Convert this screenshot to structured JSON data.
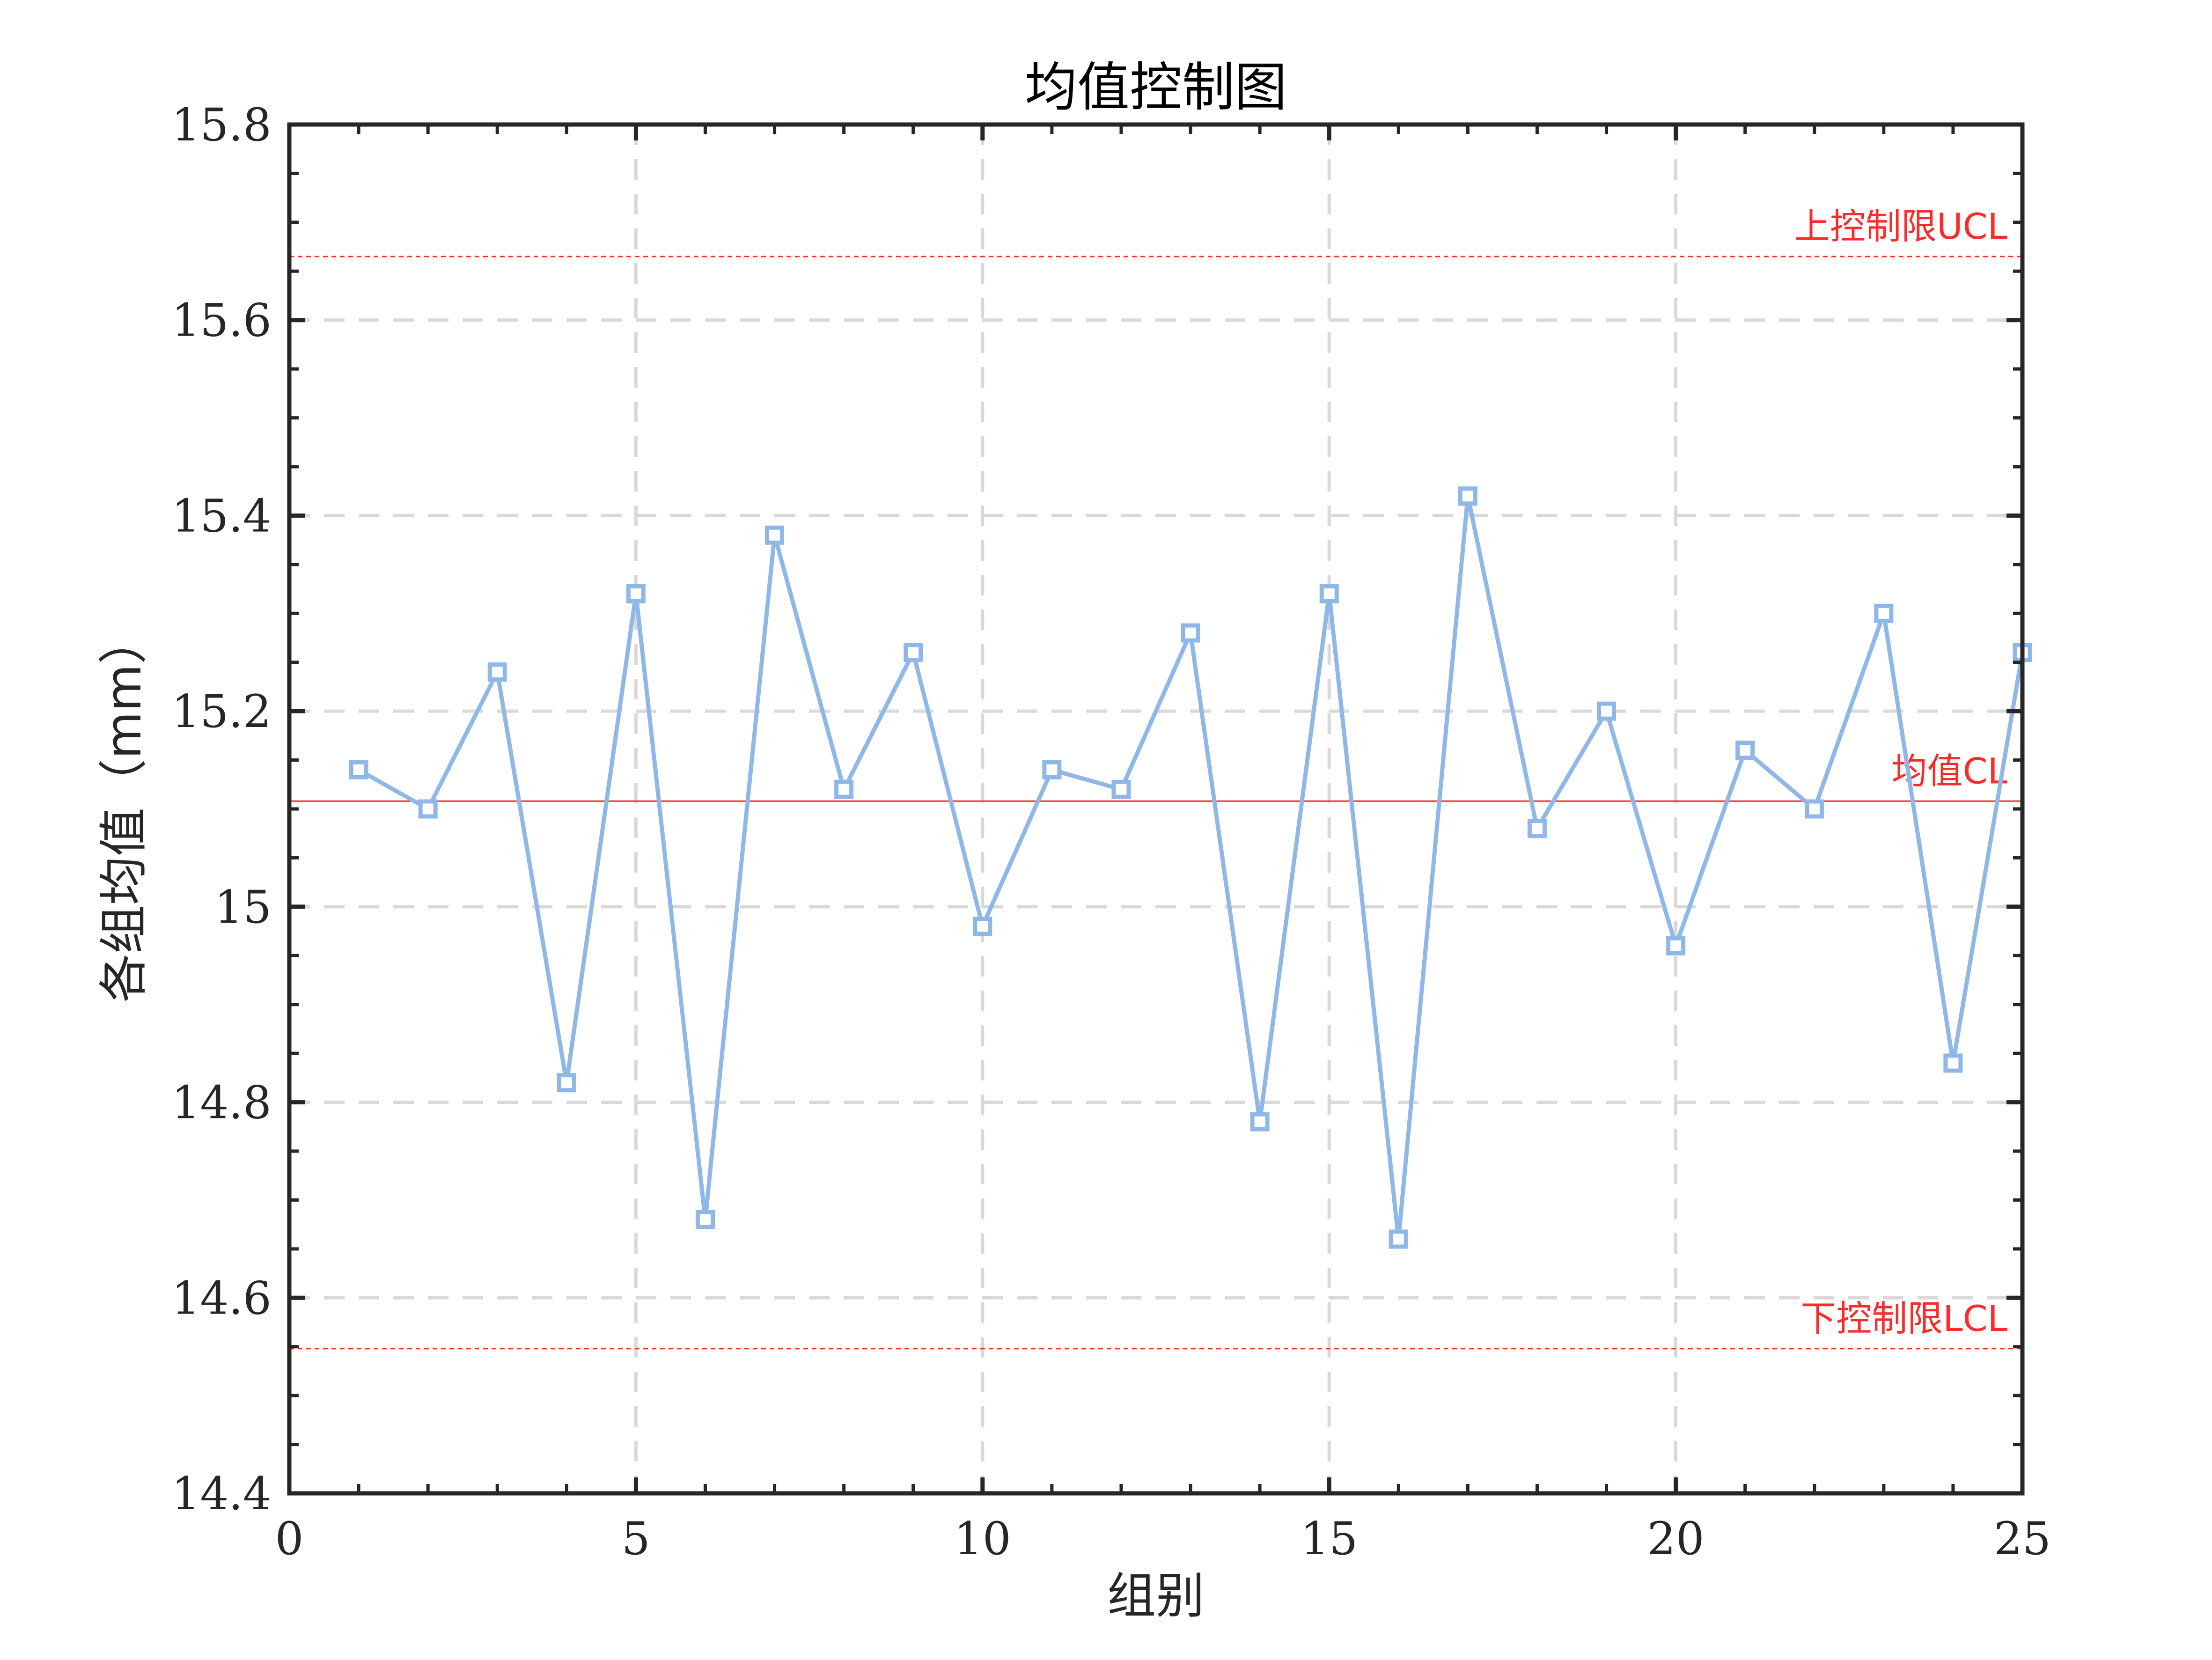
{
  "chart_data": {
    "type": "line",
    "title": "均值控制图",
    "xlabel": "组别",
    "ylabel": "各组均值（mm）",
    "xlim": [
      0,
      25
    ],
    "ylim": [
      14.4,
      15.8
    ],
    "x_ticks": [
      0,
      5,
      10,
      15,
      20,
      25
    ],
    "y_ticks": [
      14.4,
      14.6,
      14.8,
      15.0,
      15.2,
      15.4,
      15.6,
      15.8
    ],
    "x_tick_labels": [
      "0",
      "5",
      "10",
      "15",
      "20",
      "25"
    ],
    "y_tick_labels": [
      "14.4",
      "14.6",
      "14.8",
      "15",
      "15.2",
      "15.4",
      "15.6",
      "15.8"
    ],
    "grid": true,
    "series": [
      {
        "x": [
          1,
          2,
          3,
          4,
          5,
          6,
          7,
          8,
          9,
          10,
          11,
          12,
          13,
          14,
          15,
          16,
          17,
          18,
          19,
          20,
          21,
          22,
          23,
          24,
          25
        ],
        "values": [
          15.14,
          15.1,
          15.24,
          14.82,
          15.32,
          14.68,
          15.38,
          15.12,
          15.26,
          14.98,
          15.14,
          15.12,
          15.28,
          14.78,
          15.32,
          14.66,
          15.42,
          15.08,
          15.2,
          14.96,
          15.16,
          15.1,
          15.3,
          14.84,
          15.26
        ],
        "color": "#8fb8e8",
        "marker": "square"
      }
    ],
    "reference_lines": [
      {
        "label": "上控制限UCL",
        "value": 15.665,
        "style": "dashed",
        "color": "#ff2a2a"
      },
      {
        "label": "均值CL",
        "value": 15.108,
        "style": "solid",
        "color": "#ff2a2a"
      },
      {
        "label": "下控制限LCL",
        "value": 14.548,
        "style": "dashed",
        "color": "#ff2a2a"
      }
    ]
  }
}
